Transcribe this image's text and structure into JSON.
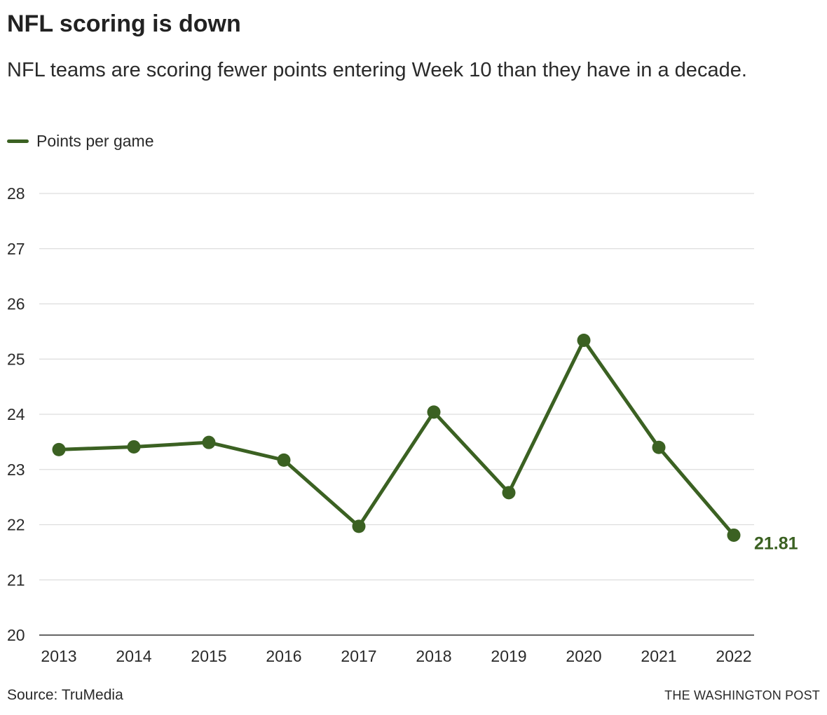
{
  "title": "NFL scoring is down",
  "subtitle": "NFL teams are scoring fewer points entering Week 10 than they have in a decade.",
  "legend": {
    "label": "Points per game"
  },
  "colors": {
    "series": "#3b6122",
    "grid": "#dddddd",
    "axis": "#333333",
    "text": "#2a2a2a"
  },
  "chart_data": {
    "type": "line",
    "x": [
      "2013",
      "2014",
      "2015",
      "2016",
      "2017",
      "2018",
      "2019",
      "2020",
      "2021",
      "2022"
    ],
    "series": [
      {
        "name": "Points per game",
        "values": [
          23.36,
          23.41,
          23.49,
          23.17,
          21.97,
          24.04,
          22.58,
          25.34,
          23.4,
          21.81
        ]
      }
    ],
    "ylim": [
      20,
      28
    ],
    "yticks": [
      20,
      21,
      22,
      23,
      24,
      25,
      26,
      27,
      28
    ],
    "grid": true,
    "legend_position": "top-left",
    "end_label": "21.81"
  },
  "footer": {
    "source": "Source: TruMedia",
    "credit": "THE WASHINGTON POST"
  }
}
